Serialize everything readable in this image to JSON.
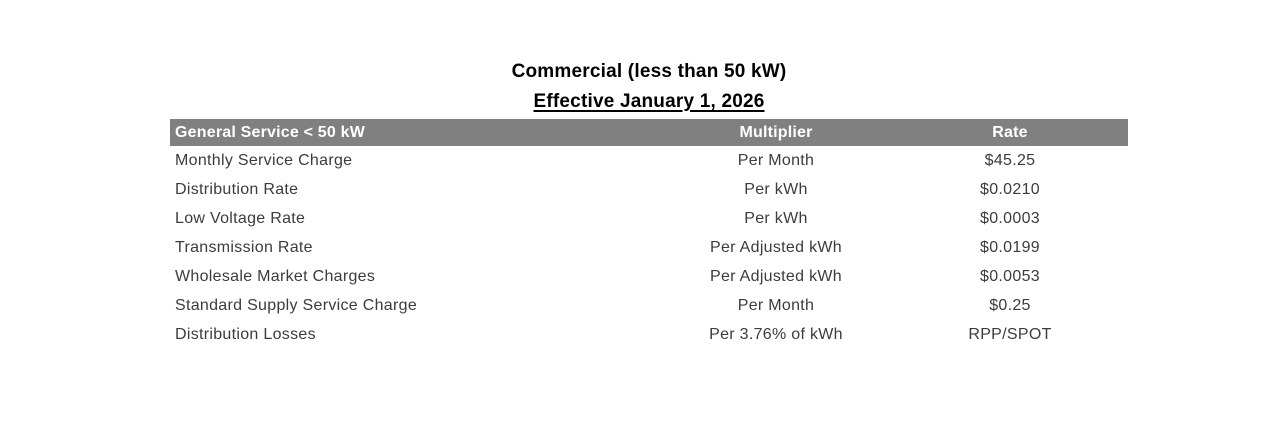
{
  "title": "Commercial (less than 50 kW)",
  "subtitle": "Effective January 1, 2026",
  "colors": {
    "header_bg": "#808080",
    "header_text": "#ffffff",
    "body_text": "#3c3c3c",
    "title_text": "#000000"
  },
  "table": {
    "columns": {
      "service": "General Service < 50 kW",
      "multiplier": "Multiplier",
      "rate": "Rate"
    },
    "rows": [
      {
        "label": "Monthly Service Charge",
        "multiplier": "Per Month",
        "rate": "$45.25"
      },
      {
        "label": "Distribution Rate",
        "multiplier": "Per kWh",
        "rate": "$0.0210"
      },
      {
        "label": "Low Voltage Rate",
        "multiplier": "Per kWh",
        "rate": "$0.0003"
      },
      {
        "label": "Transmission Rate",
        "multiplier": "Per Adjusted kWh",
        "rate": "$0.0199"
      },
      {
        "label": "Wholesale Market Charges",
        "multiplier": "Per Adjusted kWh",
        "rate": "$0.0053"
      },
      {
        "label": "Standard Supply Service Charge",
        "multiplier": "Per Month",
        "rate": "$0.25"
      },
      {
        "label": "Distribution Losses",
        "multiplier": "Per 3.76% of kWh",
        "rate": "RPP/SPOT"
      }
    ]
  }
}
